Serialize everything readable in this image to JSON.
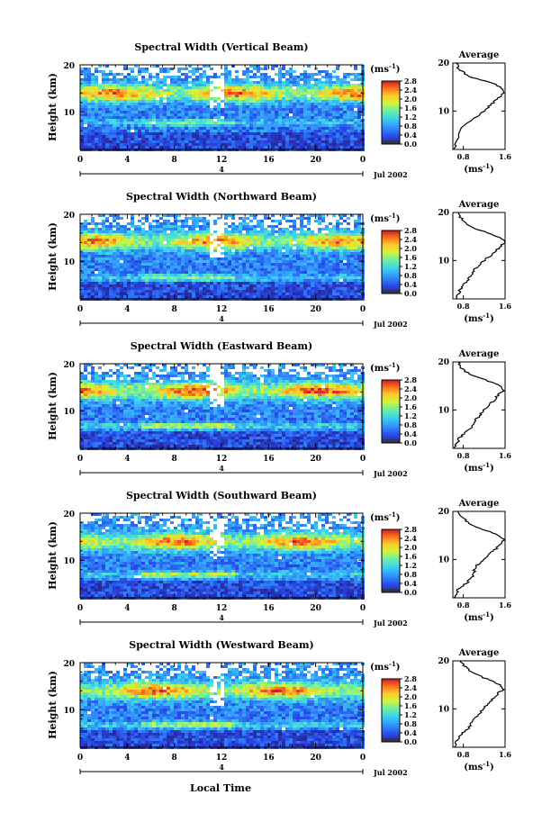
{
  "figure": {
    "xlabel_common": "Local Time",
    "colorbar_unit": "(ms",
    "colorbar_unit_sup": "-1",
    "colorbar_unit_close": ")",
    "avg_title": "Average",
    "date_label": "Jul 2002",
    "mid_marker_label": "4"
  },
  "chart_data": [
    {
      "type": "heatmap",
      "title": "Spectral Width (Vertical Beam)",
      "ylabel": "Height (km)",
      "xlabel": "",
      "x_ticks": [
        "0",
        "4",
        "8",
        "12",
        "16",
        "20",
        "0"
      ],
      "y_ticks": [
        "10",
        "20"
      ],
      "xlim": [
        0,
        24
      ],
      "ylim": [
        2,
        20
      ],
      "colorbar": {
        "ticks": [
          "0.0",
          "0.4",
          "0.8",
          "1.2",
          "1.6",
          "2.0",
          "2.4",
          "2.8"
        ],
        "range": [
          0.0,
          2.8
        ]
      },
      "average_profile": {
        "x_ticks": [
          "0.8",
          "1.6"
        ],
        "y_ticks": [
          "10",
          "20"
        ],
        "xlim": [
          0.6,
          1.6
        ],
        "ylim": [
          2,
          20
        ],
        "height_km": [
          2,
          3,
          5,
          7,
          9,
          10,
          11,
          12,
          13,
          14,
          15,
          16,
          17,
          18,
          19,
          20
        ],
        "width_ms": [
          0.63,
          0.66,
          0.7,
          0.82,
          1.1,
          1.2,
          1.3,
          1.4,
          1.5,
          1.58,
          1.52,
          1.3,
          0.95,
          0.8,
          0.7,
          0.66
        ]
      },
      "field": {
        "layer_center_km": 14.2,
        "layer_peak": 2.4,
        "lower_layer_km": 8.0,
        "lower_peak": 1.5
      }
    },
    {
      "type": "heatmap",
      "title": "Spectral Width (Northward Beam)",
      "ylabel": "Height (km)",
      "xlabel": "",
      "x_ticks": [
        "0",
        "4",
        "8",
        "12",
        "16",
        "20",
        "0"
      ],
      "y_ticks": [
        "10",
        "20"
      ],
      "xlim": [
        0,
        24
      ],
      "ylim": [
        2,
        20
      ],
      "colorbar": {
        "ticks": [
          "0.0",
          "0.4",
          "0.8",
          "1.2",
          "1.6",
          "2.0",
          "2.4",
          "2.8"
        ],
        "range": [
          0.0,
          2.8
        ]
      },
      "average_profile": {
        "x_ticks": [
          "0.8",
          "1.6"
        ],
        "y_ticks": [
          "10",
          "20"
        ],
        "xlim": [
          0.6,
          1.6
        ],
        "ylim": [
          2,
          20
        ],
        "height_km": [
          2,
          3,
          4,
          5,
          6,
          7,
          8,
          9,
          10,
          11,
          12,
          13,
          14,
          15,
          16,
          17,
          18,
          19,
          20
        ],
        "width_ms": [
          0.66,
          0.7,
          0.75,
          0.82,
          0.9,
          0.95,
          1.0,
          1.1,
          1.2,
          1.32,
          1.42,
          1.52,
          1.6,
          1.45,
          1.2,
          0.95,
          0.82,
          0.75,
          0.7
        ]
      },
      "field": {
        "layer_center_km": 14.5,
        "layer_peak": 2.3,
        "lower_layer_km": 6.8,
        "lower_peak": 1.6
      }
    },
    {
      "type": "heatmap",
      "title": "Spectral Width (Eastward Beam)",
      "ylabel": "Height (km)",
      "xlabel": "",
      "x_ticks": [
        "0",
        "4",
        "8",
        "12",
        "16",
        "20",
        "0"
      ],
      "y_ticks": [
        "10",
        "20"
      ],
      "xlim": [
        0,
        24
      ],
      "ylim": [
        2,
        20
      ],
      "colorbar": {
        "ticks": [
          "0.0",
          "0.4",
          "0.8",
          "1.2",
          "1.6",
          "2.0",
          "2.4",
          "2.8"
        ],
        "range": [
          0.0,
          2.8
        ]
      },
      "average_profile": {
        "x_ticks": [
          "0.8",
          "1.6"
        ],
        "y_ticks": [
          "10",
          "20"
        ],
        "xlim": [
          0.6,
          1.6
        ],
        "ylim": [
          2,
          20
        ],
        "height_km": [
          2,
          3,
          4,
          5,
          6,
          7,
          8,
          9,
          10,
          11,
          12,
          13,
          14,
          15,
          16,
          17,
          18,
          19,
          20
        ],
        "width_ms": [
          0.64,
          0.68,
          0.72,
          0.8,
          0.92,
          0.98,
          1.05,
          1.12,
          1.2,
          1.3,
          1.38,
          1.46,
          1.58,
          1.5,
          1.28,
          1.02,
          0.85,
          0.74,
          0.7
        ]
      },
      "field": {
        "layer_center_km": 14.5,
        "layer_peak": 2.5,
        "lower_layer_km": 7.0,
        "lower_peak": 1.8
      }
    },
    {
      "type": "heatmap",
      "title": "Spectral Width (Southward Beam)",
      "ylabel": "Height (km)",
      "xlabel": "",
      "x_ticks": [
        "0",
        "4",
        "8",
        "12",
        "16",
        "20",
        "0"
      ],
      "y_ticks": [
        "10",
        "20"
      ],
      "xlim": [
        0,
        24
      ],
      "ylim": [
        2,
        20
      ],
      "colorbar": {
        "ticks": [
          "0.0",
          "0.4",
          "0.8",
          "1.2",
          "1.6",
          "2.0",
          "2.4",
          "2.8"
        ],
        "range": [
          0.0,
          2.8
        ]
      },
      "average_profile": {
        "x_ticks": [
          "0.8",
          "1.6"
        ],
        "y_ticks": [
          "10",
          "20"
        ],
        "xlim": [
          0.6,
          1.6
        ],
        "ylim": [
          2,
          20
        ],
        "height_km": [
          2,
          3,
          4,
          5,
          6,
          7,
          8,
          9,
          10,
          11,
          12,
          13,
          14,
          15,
          16,
          17,
          18,
          19,
          20
        ],
        "width_ms": [
          0.64,
          0.68,
          0.72,
          0.85,
          0.95,
          1.0,
          1.02,
          1.08,
          1.18,
          1.28,
          1.4,
          1.5,
          1.58,
          1.48,
          1.25,
          1.0,
          0.85,
          0.76,
          0.7
        ]
      },
      "field": {
        "layer_center_km": 14.2,
        "layer_peak": 2.4,
        "lower_layer_km": 7.2,
        "lower_peak": 1.7
      }
    },
    {
      "type": "heatmap",
      "title": "Spectral Width (Westward Beam)",
      "ylabel": "Height (km)",
      "xlabel": "Local Time",
      "x_ticks": [
        "0",
        "4",
        "8",
        "12",
        "16",
        "20",
        "0"
      ],
      "y_ticks": [
        "10",
        "20"
      ],
      "xlim": [
        0,
        24
      ],
      "ylim": [
        2,
        20
      ],
      "colorbar": {
        "ticks": [
          "0.0",
          "0.4",
          "0.8",
          "1.2",
          "1.6",
          "2.0",
          "2.4",
          "2.8"
        ],
        "range": [
          0.0,
          2.8
        ]
      },
      "average_profile": {
        "x_ticks": [
          "0.8",
          "1.6"
        ],
        "y_ticks": [
          "10",
          "20"
        ],
        "xlim": [
          0.6,
          1.6
        ],
        "ylim": [
          2,
          20
        ],
        "height_km": [
          2,
          3,
          4,
          5,
          6,
          7,
          8,
          9,
          10,
          11,
          12,
          13,
          14,
          15,
          16,
          17,
          18,
          19,
          20
        ],
        "width_ms": [
          0.63,
          0.66,
          0.7,
          0.8,
          0.9,
          0.96,
          1.02,
          1.1,
          1.18,
          1.28,
          1.36,
          1.44,
          1.55,
          1.5,
          1.3,
          1.08,
          0.92,
          0.8,
          0.74
        ]
      },
      "field": {
        "layer_center_km": 14.3,
        "layer_peak": 2.4,
        "lower_layer_km": 7.0,
        "lower_peak": 1.8
      }
    }
  ]
}
